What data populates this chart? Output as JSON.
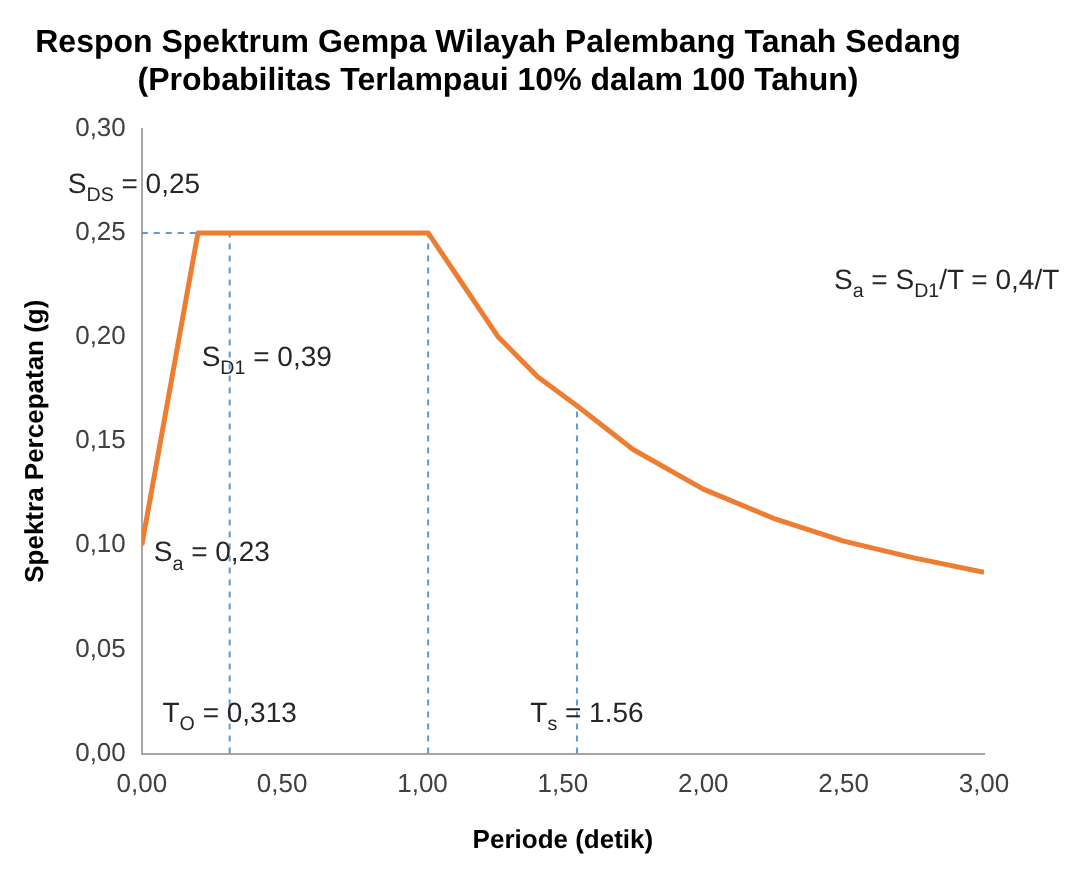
{
  "chart_data": {
    "type": "line",
    "title": "Respon Spektrum Gempa Wilayah Palembang Tanah Sedang\n(Probabilitas Terlampaui 10% dalam 100 Tahun)",
    "xlabel": "Periode (detik)",
    "ylabel": "Spektra Percepatan (g)",
    "x": [
      0,
      0.2,
      1.02,
      1.13,
      1.27,
      1.41,
      1.55,
      1.75,
      2.0,
      2.25,
      2.5,
      2.75,
      3.0
    ],
    "series": [
      {
        "color": "#ed7d31",
        "values": [
          0.1,
          0.25,
          0.25,
          0.228,
          0.2,
          0.181,
          0.167,
          0.146,
          0.127,
          0.113,
          0.102,
          0.094,
          0.087
        ]
      }
    ],
    "xlim": [
      0,
      3
    ],
    "xticks": [
      {
        "value": 0,
        "label": "0,00"
      },
      {
        "value": 0.5,
        "label": "0,50"
      },
      {
        "value": 1,
        "label": "1,00"
      },
      {
        "value": 1.5,
        "label": "1,50"
      },
      {
        "value": 2,
        "label": "2,00"
      },
      {
        "value": 2.5,
        "label": "2,50"
      },
      {
        "value": 3,
        "label": "3,00"
      }
    ],
    "ylim": [
      0,
      0.3
    ],
    "yticks": [
      {
        "value": 0,
        "label": "0,00"
      },
      {
        "value": 0.05,
        "label": "0,05"
      },
      {
        "value": 0.1,
        "label": "0,10"
      },
      {
        "value": 0.15,
        "label": "0,15"
      },
      {
        "value": 0.2,
        "label": "0,20"
      },
      {
        "value": 0.25,
        "label": "0,25"
      },
      {
        "value": 0.3,
        "label": "0,30"
      }
    ],
    "ref_lines": [
      {
        "axis": "y",
        "value": 0.25,
        "color": "#5b9bd5",
        "line_style": "dashed"
      },
      {
        "axis": "x",
        "value": 0.313,
        "color": "#5b9bd5",
        "line_style": "dashed"
      },
      {
        "axis": "x",
        "value": 1.02,
        "color": "#5b9bd5",
        "line_style": "dashed"
      },
      {
        "axis": "x",
        "value": 1.55,
        "color": "#5b9bd5",
        "line_style": "dashed"
      }
    ],
    "annotations": [
      {
        "text": "S$_{DS}$ = 0,25",
        "x": 0,
        "y": 0.25
      },
      {
        "text": "S$_{D1}$ = 0,39",
        "x": 0.313,
        "y": 0.19
      },
      {
        "text": "S$_{a}$ = 0,23",
        "x": 0,
        "y": 0.1
      },
      {
        "text": "T$_{O}$ = 0,313",
        "x": 0.313,
        "y": 0
      },
      {
        "text": "T$_{s}$ = 1.56",
        "x": 1.55,
        "y": 0
      },
      "S$_{a}$ = S$_{D1}$/T = 0,4/T"
    ],
    "grid": false,
    "legend": false,
    "marker": "none",
    "line_style": "solid"
  }
}
